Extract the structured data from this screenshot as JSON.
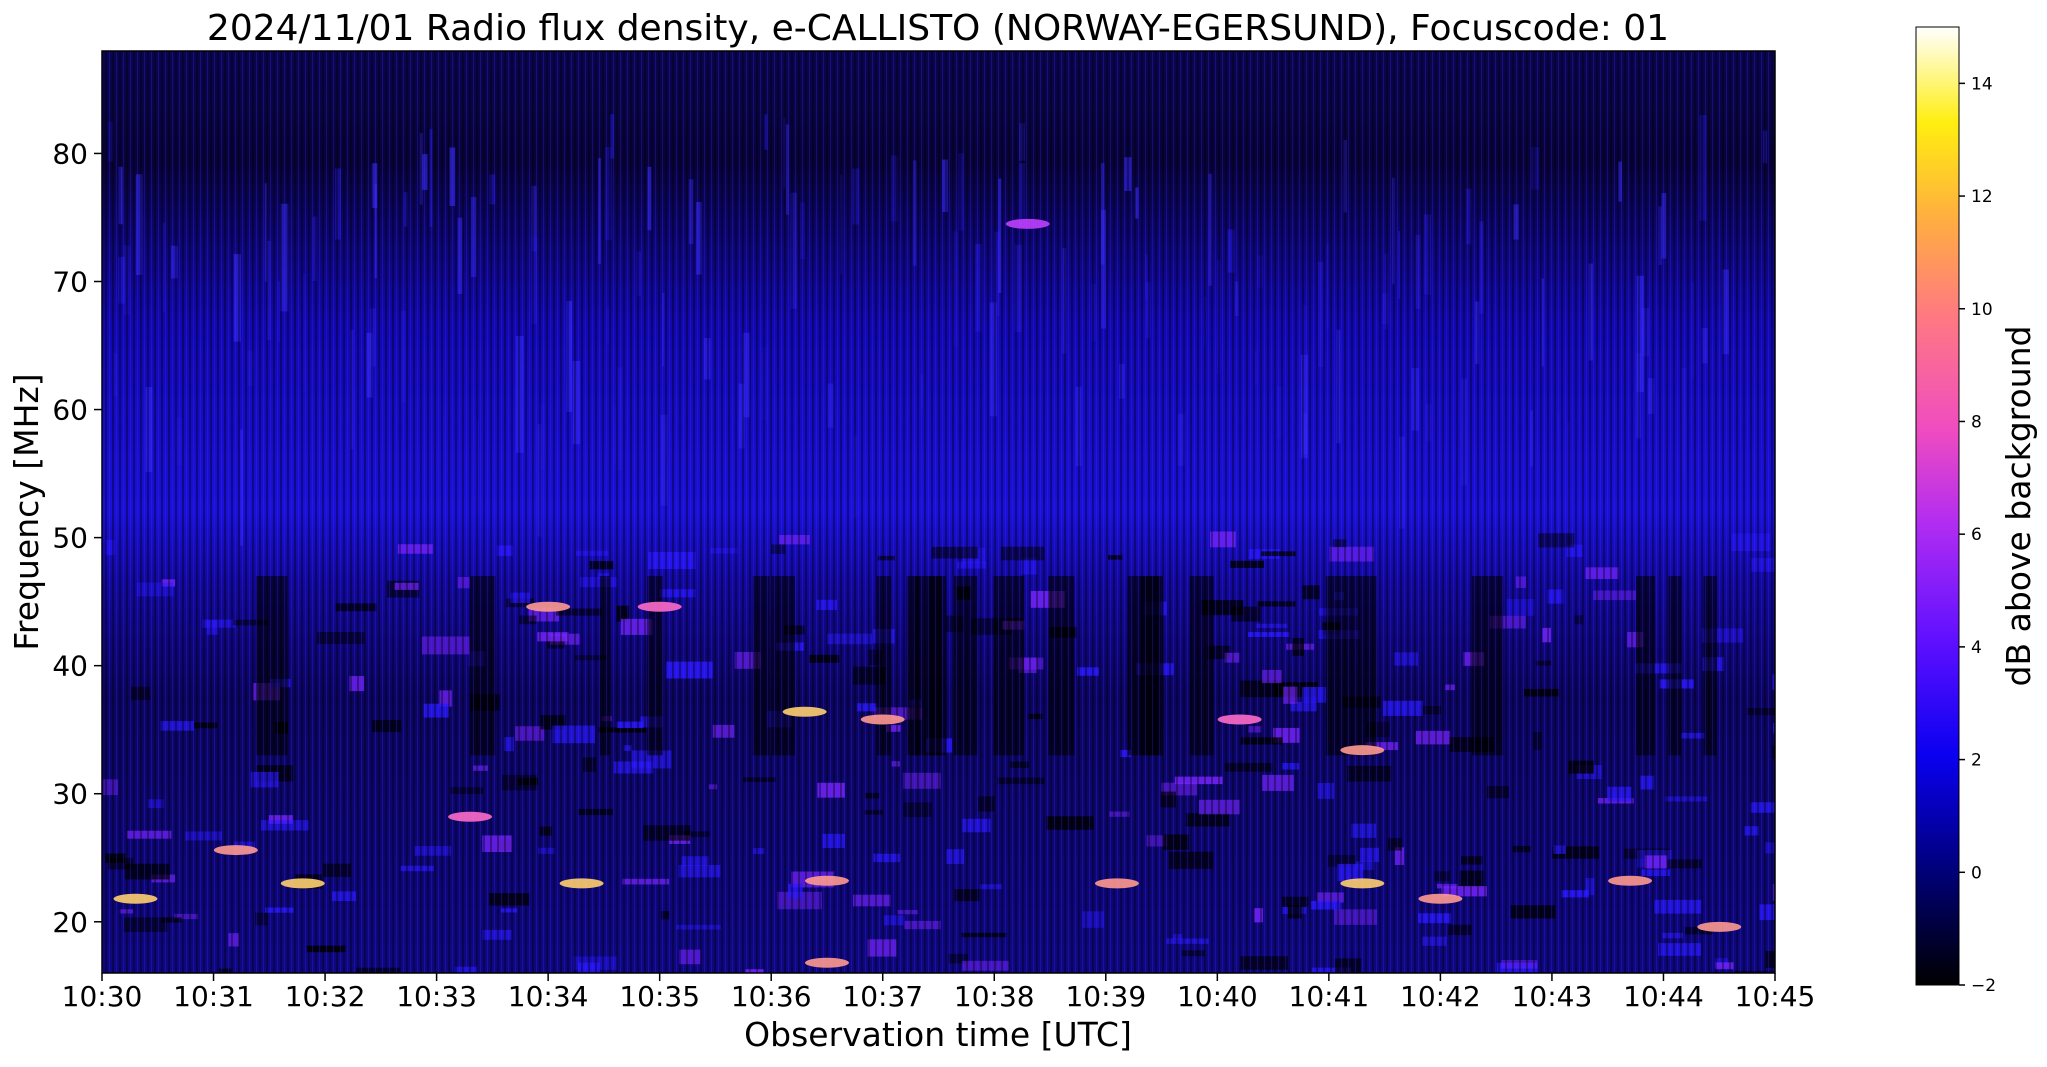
{
  "chart_data": {
    "type": "heatmap",
    "title": "2024/11/01  Radio flux density, e-CALLISTO (NORWAY-EGERSUND), Focuscode: 01",
    "xlabel": "Observation time [UTC]",
    "ylabel": "Frequency [MHz]",
    "x_ticks": [
      "10:30",
      "10:31",
      "10:32",
      "10:33",
      "10:34",
      "10:35",
      "10:36",
      "10:37",
      "10:38",
      "10:39",
      "10:40",
      "10:41",
      "10:42",
      "10:43",
      "10:44",
      "10:45"
    ],
    "xlim": [
      "10:30",
      "10:45"
    ],
    "y_ticks": [
      20,
      30,
      40,
      50,
      60,
      70,
      80
    ],
    "ylim": [
      16,
      88
    ],
    "colorbar": {
      "label": "dB above background",
      "ticks": [
        -2,
        0,
        2,
        4,
        6,
        8,
        10,
        12,
        14
      ],
      "range": [
        -2,
        15
      ],
      "colormap": "gnuplot2"
    },
    "bright_features": [
      {
        "time": "10:30.3",
        "freq_mhz": 21.8,
        "db": 12
      },
      {
        "time": "10:31.2",
        "freq_mhz": 25.6,
        "db": 11
      },
      {
        "time": "10:31.8",
        "freq_mhz": 23.0,
        "db": 12
      },
      {
        "time": "10:33.3",
        "freq_mhz": 28.2,
        "db": 9
      },
      {
        "time": "10:34.0",
        "freq_mhz": 44.6,
        "db": 10
      },
      {
        "time": "10:34.3",
        "freq_mhz": 23.0,
        "db": 12
      },
      {
        "time": "10:35.0",
        "freq_mhz": 44.6,
        "db": 8
      },
      {
        "time": "10:36.3",
        "freq_mhz": 36.4,
        "db": 12
      },
      {
        "time": "10:36.5",
        "freq_mhz": 23.2,
        "db": 11
      },
      {
        "time": "10:36.5",
        "freq_mhz": 16.8,
        "db": 11
      },
      {
        "time": "10:37.0",
        "freq_mhz": 35.8,
        "db": 10
      },
      {
        "time": "10:38.3",
        "freq_mhz": 74.5,
        "db": 7
      },
      {
        "time": "10:39.1",
        "freq_mhz": 23.0,
        "db": 10
      },
      {
        "time": "10:40.2",
        "freq_mhz": 35.8,
        "db": 9
      },
      {
        "time": "10:41.3",
        "freq_mhz": 23.0,
        "db": 13
      },
      {
        "time": "10:41.3",
        "freq_mhz": 33.4,
        "db": 10
      },
      {
        "time": "10:42.0",
        "freq_mhz": 21.8,
        "db": 11
      },
      {
        "time": "10:43.7",
        "freq_mhz": 23.2,
        "db": 11
      },
      {
        "time": "10:44.5",
        "freq_mhz": 19.6,
        "db": 10
      }
    ],
    "grid": false,
    "legend": "none"
  }
}
